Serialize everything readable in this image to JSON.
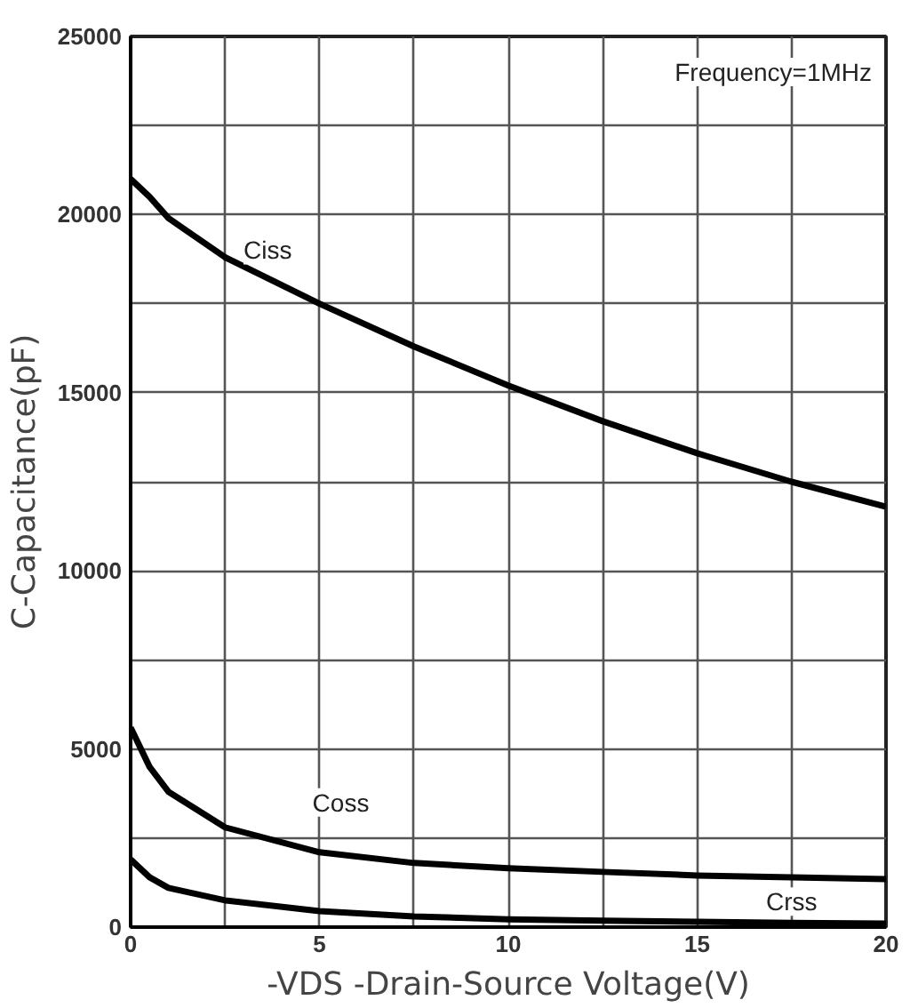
{
  "chart_data": {
    "type": "line",
    "xlabel": "-VDS -Drain-Source Voltage(V)",
    "ylabel": "C-Capacitance(pF)",
    "x": [
      0,
      0.5,
      1,
      2.5,
      5,
      7.5,
      10,
      12.5,
      15,
      17.5,
      20
    ],
    "series": [
      {
        "name": "Ciss",
        "color": "#000000",
        "values": [
          21000,
          20500,
          19900,
          18800,
          17500,
          16300,
          15200,
          14200,
          13300,
          12500,
          11800
        ]
      },
      {
        "name": "Coss",
        "color": "#000000",
        "values": [
          5600,
          4500,
          3800,
          2800,
          2100,
          1800,
          1650,
          1550,
          1450,
          1400,
          1350
        ]
      },
      {
        "name": "Crss",
        "color": "#000000",
        "values": [
          1900,
          1400,
          1100,
          750,
          450,
          300,
          220,
          180,
          150,
          120,
          100
        ]
      }
    ],
    "annotations": [
      "Frequency=1MHz"
    ],
    "xlim": [
      0,
      20
    ],
    "ylim": [
      0,
      25000
    ],
    "xticks": [
      0,
      {
        "value": 2.5,
        "label": null
      },
      5,
      {
        "value": 7.5,
        "label": null
      },
      10,
      {
        "value": 12.5,
        "label": null
      },
      15,
      {
        "value": 17.5,
        "label": null
      },
      20
    ],
    "yticks": [
      0,
      {
        "value": 2500,
        "label": null
      },
      5000,
      {
        "value": 7500,
        "label": null
      },
      10000,
      {
        "value": 12500,
        "label": null
      },
      15000,
      {
        "value": 17500,
        "label": null
      },
      20000,
      {
        "value": 22500,
        "label": null
      },
      25000
    ],
    "grid": true,
    "marker": "none",
    "line_style": "solid"
  }
}
